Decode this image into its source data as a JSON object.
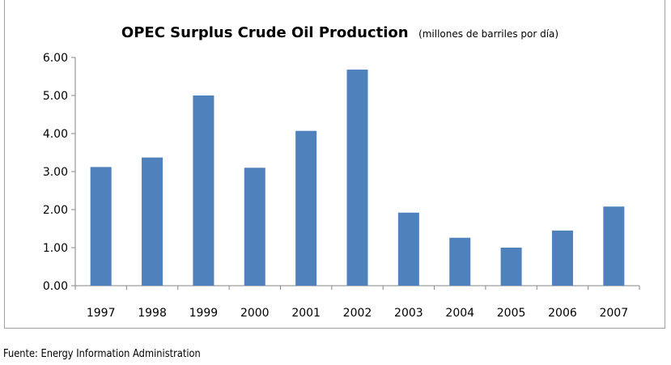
{
  "chart_data": {
    "type": "bar",
    "title": "OPEC Surplus Crude Oil Production",
    "subtitle": "(millones de barriles por día)",
    "categories": [
      "1997",
      "1998",
      "1999",
      "2000",
      "2001",
      "2002",
      "2003",
      "2004",
      "2005",
      "2006",
      "2007"
    ],
    "values": [
      3.12,
      3.37,
      5.0,
      3.1,
      4.07,
      5.68,
      1.92,
      1.26,
      1.0,
      1.45,
      2.08
    ],
    "ylim": [
      0,
      6
    ],
    "yticks": [
      "0.00",
      "1.00",
      "2.00",
      "3.00",
      "4.00",
      "5.00",
      "6.00"
    ],
    "bar_color": "#4f81bd",
    "grid": false,
    "legend": "none"
  },
  "source": "Fuente: Energy Information Administration"
}
